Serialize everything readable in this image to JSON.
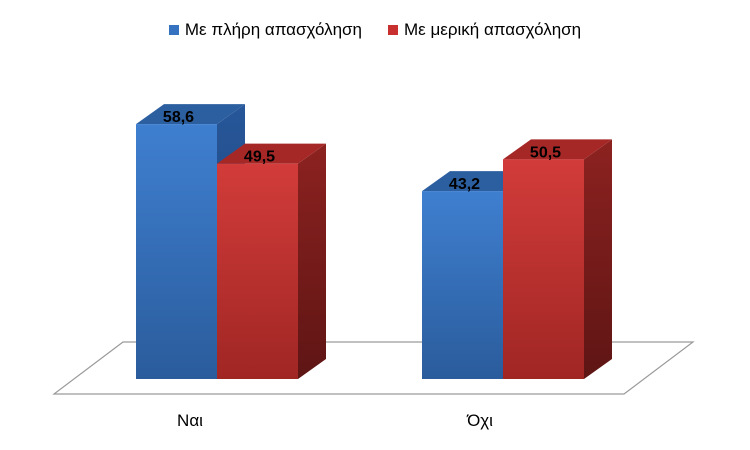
{
  "chart_data": {
    "type": "bar",
    "categories": [
      "Ναι",
      "Όχι"
    ],
    "series": [
      {
        "name": "Με πλήρη απασχόληση",
        "values": [
          58.6,
          43.2
        ]
      },
      {
        "name": "Με μερική απασχόληση",
        "values": [
          49.5,
          50.5
        ]
      }
    ],
    "data_labels": [
      [
        "58,6",
        "43,2"
      ],
      [
        "49,5",
        "50,5"
      ]
    ],
    "colors": {
      "series": [
        "#3572bf",
        "#c8302f"
      ],
      "series_side": [
        "#234f8a",
        "#7e1d1c"
      ],
      "series_top": [
        "#2c5f9f",
        "#a52827"
      ]
    },
    "legend_position": "top",
    "grid": false,
    "style": "3d-clustered-column"
  }
}
